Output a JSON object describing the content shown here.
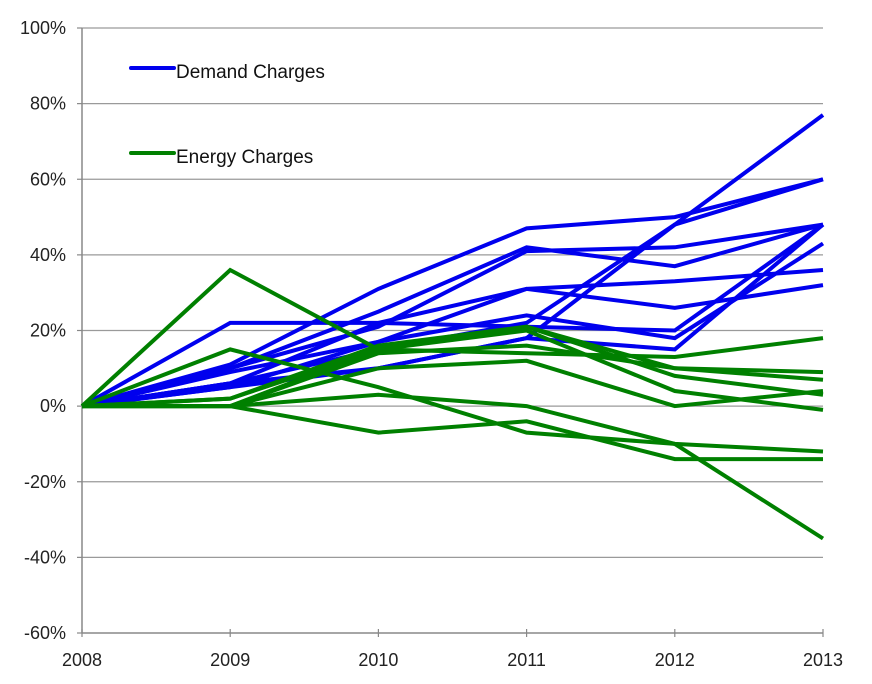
{
  "chart_data": {
    "type": "line",
    "title": "",
    "xlabel": "",
    "ylabel": "",
    "x": [
      "2008",
      "2009",
      "2010",
      "2011",
      "2012",
      "2013"
    ],
    "ylim": [
      -60,
      100
    ],
    "yticks": [
      100,
      80,
      60,
      40,
      20,
      0,
      -20,
      -40,
      -60
    ],
    "ytick_labels": [
      "100%",
      "80%",
      "60%",
      "40%",
      "20%",
      "0%",
      "-20%",
      "-40%",
      "-60%"
    ],
    "grid": "horizontal",
    "legend": [
      {
        "label": "Demand Charges",
        "color": "#0000ee"
      },
      {
        "label": "Energy Charges",
        "color": "#008000"
      }
    ],
    "series": [
      {
        "group": "Demand Charges",
        "values": [
          0,
          22,
          22,
          21,
          20,
          48
        ]
      },
      {
        "group": "Demand Charges",
        "values": [
          0,
          11,
          31,
          47,
          50,
          60
        ]
      },
      {
        "group": "Demand Charges",
        "values": [
          0,
          10,
          25,
          42,
          37,
          48
        ]
      },
      {
        "group": "Demand Charges",
        "values": [
          0,
          10,
          21,
          41,
          42,
          48
        ]
      },
      {
        "group": "Demand Charges",
        "values": [
          0,
          6,
          22,
          31,
          33,
          36
        ]
      },
      {
        "group": "Demand Charges",
        "values": [
          0,
          9,
          17,
          31,
          26,
          32
        ]
      },
      {
        "group": "Demand Charges",
        "values": [
          0,
          5,
          17,
          24,
          18,
          43
        ]
      },
      {
        "group": "Demand Charges",
        "values": [
          0,
          6,
          10,
          18,
          15,
          48
        ]
      },
      {
        "group": "Demand Charges",
        "values": [
          0,
          6,
          15,
          22,
          48,
          77
        ]
      },
      {
        "group": "Demand Charges",
        "values": [
          0,
          5,
          10,
          18,
          48,
          60
        ]
      },
      {
        "group": "Energy Charges",
        "values": [
          0,
          36,
          15,
          21,
          8,
          3
        ]
      },
      {
        "group": "Energy Charges",
        "values": [
          0,
          15,
          5,
          -7,
          -10,
          -12
        ]
      },
      {
        "group": "Energy Charges",
        "values": [
          0,
          0,
          3,
          0,
          -10,
          -35
        ]
      },
      {
        "group": "Energy Charges",
        "values": [
          0,
          0,
          -7,
          -4,
          -14,
          -14
        ]
      },
      {
        "group": "Energy Charges",
        "values": [
          0,
          2,
          15,
          20,
          4,
          -1
        ]
      },
      {
        "group": "Energy Charges",
        "values": [
          0,
          0,
          15,
          14,
          13,
          18
        ]
      },
      {
        "group": "Energy Charges",
        "values": [
          0,
          0,
          10,
          12,
          0,
          4
        ]
      },
      {
        "group": "Energy Charges",
        "values": [
          0,
          2,
          16,
          21,
          10,
          7
        ]
      },
      {
        "group": "Energy Charges",
        "values": [
          0,
          0,
          14,
          16,
          10,
          9
        ]
      }
    ]
  }
}
